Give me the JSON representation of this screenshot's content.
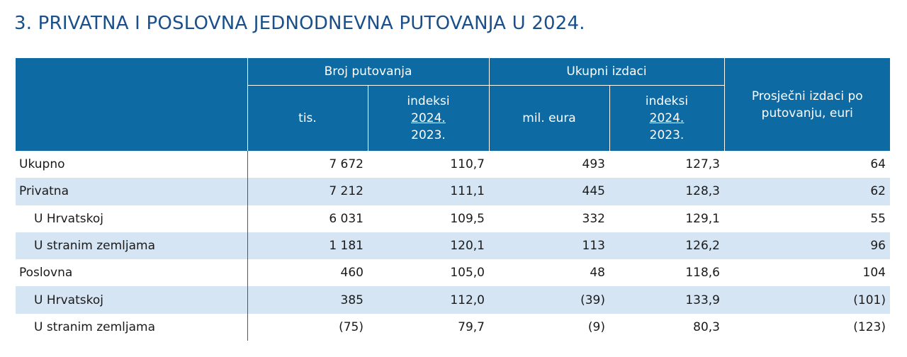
{
  "title": "3. PRIVATNA I POSLOVNA JEDNODNEVNA PUTOVANJA U 2024.",
  "header": {
    "group_trips": "Broj putovanja",
    "group_expenses": "Ukupni izdaci",
    "avg_expense": "Prosječni izdaci po putovanju, euri",
    "trips_unit": "tis.",
    "trips_index_label": "indeksi",
    "trips_index_num": "2024.",
    "trips_index_den": "2023.",
    "expenses_unit": "mil. eura",
    "expenses_index_label": "indeksi",
    "expenses_index_num": "2024.",
    "expenses_index_den": "2023."
  },
  "rows": [
    {
      "label": "Ukupno",
      "trips": "7 672",
      "trips_index": "110,7",
      "expenses": "493",
      "expenses_index": "127,3",
      "avg": "64"
    },
    {
      "label": "Privatna",
      "trips": "7 212",
      "trips_index": "111,1",
      "expenses": "445",
      "expenses_index": "128,3",
      "avg": "62"
    },
    {
      "label": "U Hrvatskoj",
      "trips": "6 031",
      "trips_index": "109,5",
      "expenses": "332",
      "expenses_index": "129,1",
      "avg": "55"
    },
    {
      "label": "U stranim zemljama",
      "trips": "1 181",
      "trips_index": "120,1",
      "expenses": "113",
      "expenses_index": "126,2",
      "avg": "96"
    },
    {
      "label": "Poslovna",
      "trips": "460",
      "trips_index": "105,0",
      "expenses": "48",
      "expenses_index": "118,6",
      "avg": "104"
    },
    {
      "label": "U Hrvatskoj",
      "trips": "385",
      "trips_index": "112,0",
      "expenses": "(39)",
      "expenses_index": "133,9",
      "avg": "(101)"
    },
    {
      "label": "U stranim zemljama",
      "trips": "(75)",
      "trips_index": "79,7",
      "expenses": "(9)",
      "expenses_index": "80,3",
      "avg": "(123)"
    }
  ],
  "colors": {
    "header_bg": "#0d6aa3",
    "title": "#1a4f8a",
    "row_shade": "#d6e5f3"
  }
}
